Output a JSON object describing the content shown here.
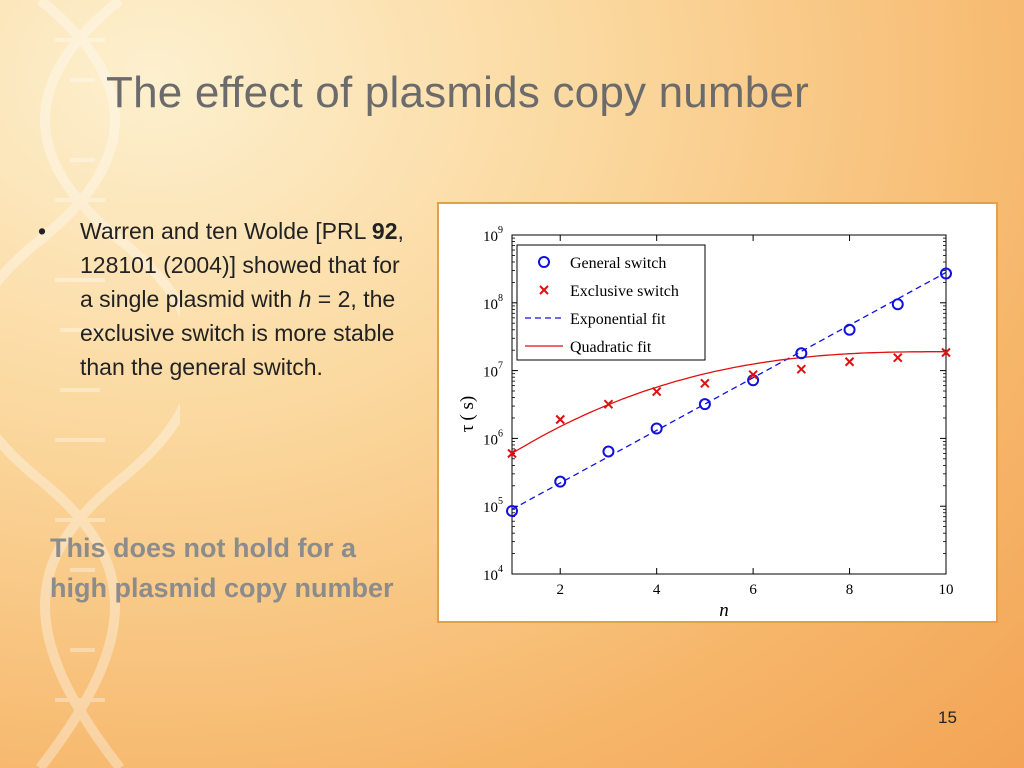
{
  "slide": {
    "title": "The effect of plasmids copy number",
    "page_number": "15"
  },
  "bullet": {
    "marker": "•",
    "text_1": "Warren and ten Wolde [PRL ",
    "journal_volume": "92",
    "text_2": ", 128101 (2004)] showed that for a single plasmid with ",
    "variable": "h",
    "text_3": " = 2, the exclusive switch is more stable than the general switch."
  },
  "highlight_text": "This does not hold for a high plasmid copy number",
  "colors": {
    "general": "#1010e0",
    "exclusive": "#e01010",
    "border": "#e2a04a"
  },
  "chart_data": {
    "type": "scatter",
    "xlabel": "n",
    "ylabel_symbol": "τ",
    "ylabel_unit": "( s)",
    "xlim": [
      1,
      10
    ],
    "ylim": [
      10000,
      1000000000
    ],
    "yscale": "log",
    "x_ticks": [
      2,
      4,
      6,
      8,
      10
    ],
    "y_ticks": [
      {
        "value": 10000,
        "base": "10",
        "exp": "4"
      },
      {
        "value": 100000,
        "base": "10",
        "exp": "5"
      },
      {
        "value": 1000000,
        "base": "10",
        "exp": "6"
      },
      {
        "value": 10000000,
        "base": "10",
        "exp": "7"
      },
      {
        "value": 100000000,
        "base": "10",
        "exp": "8"
      },
      {
        "value": 1000000000,
        "base": "10",
        "exp": "9"
      }
    ],
    "legend_position": "top-left",
    "legend": [
      "General switch",
      "Exclusive switch",
      "Exponential fit",
      "Quadratic fit"
    ],
    "x": [
      1,
      2,
      3,
      4,
      5,
      6,
      7,
      8,
      9,
      10
    ],
    "series": [
      {
        "name": "General switch",
        "marker": "circle",
        "values": [
          85000,
          230000,
          640000,
          1400000,
          3200000,
          7200000,
          18000000,
          40000000,
          95000000,
          270000000
        ]
      },
      {
        "name": "Exclusive switch",
        "marker": "x",
        "values": [
          600000,
          1900000,
          3200000,
          4900000,
          6500000,
          8700000,
          10500000,
          13500000,
          15500000,
          18500000
        ]
      }
    ],
    "fits": [
      {
        "name": "Exponential fit",
        "style": "dashed",
        "from": [
          1,
          90000
        ],
        "to": [
          10,
          280000000
        ]
      },
      {
        "name": "Quadratic fit",
        "style": "solid",
        "from": [
          1,
          600000
        ],
        "to": [
          10,
          19000000
        ]
      }
    ]
  }
}
